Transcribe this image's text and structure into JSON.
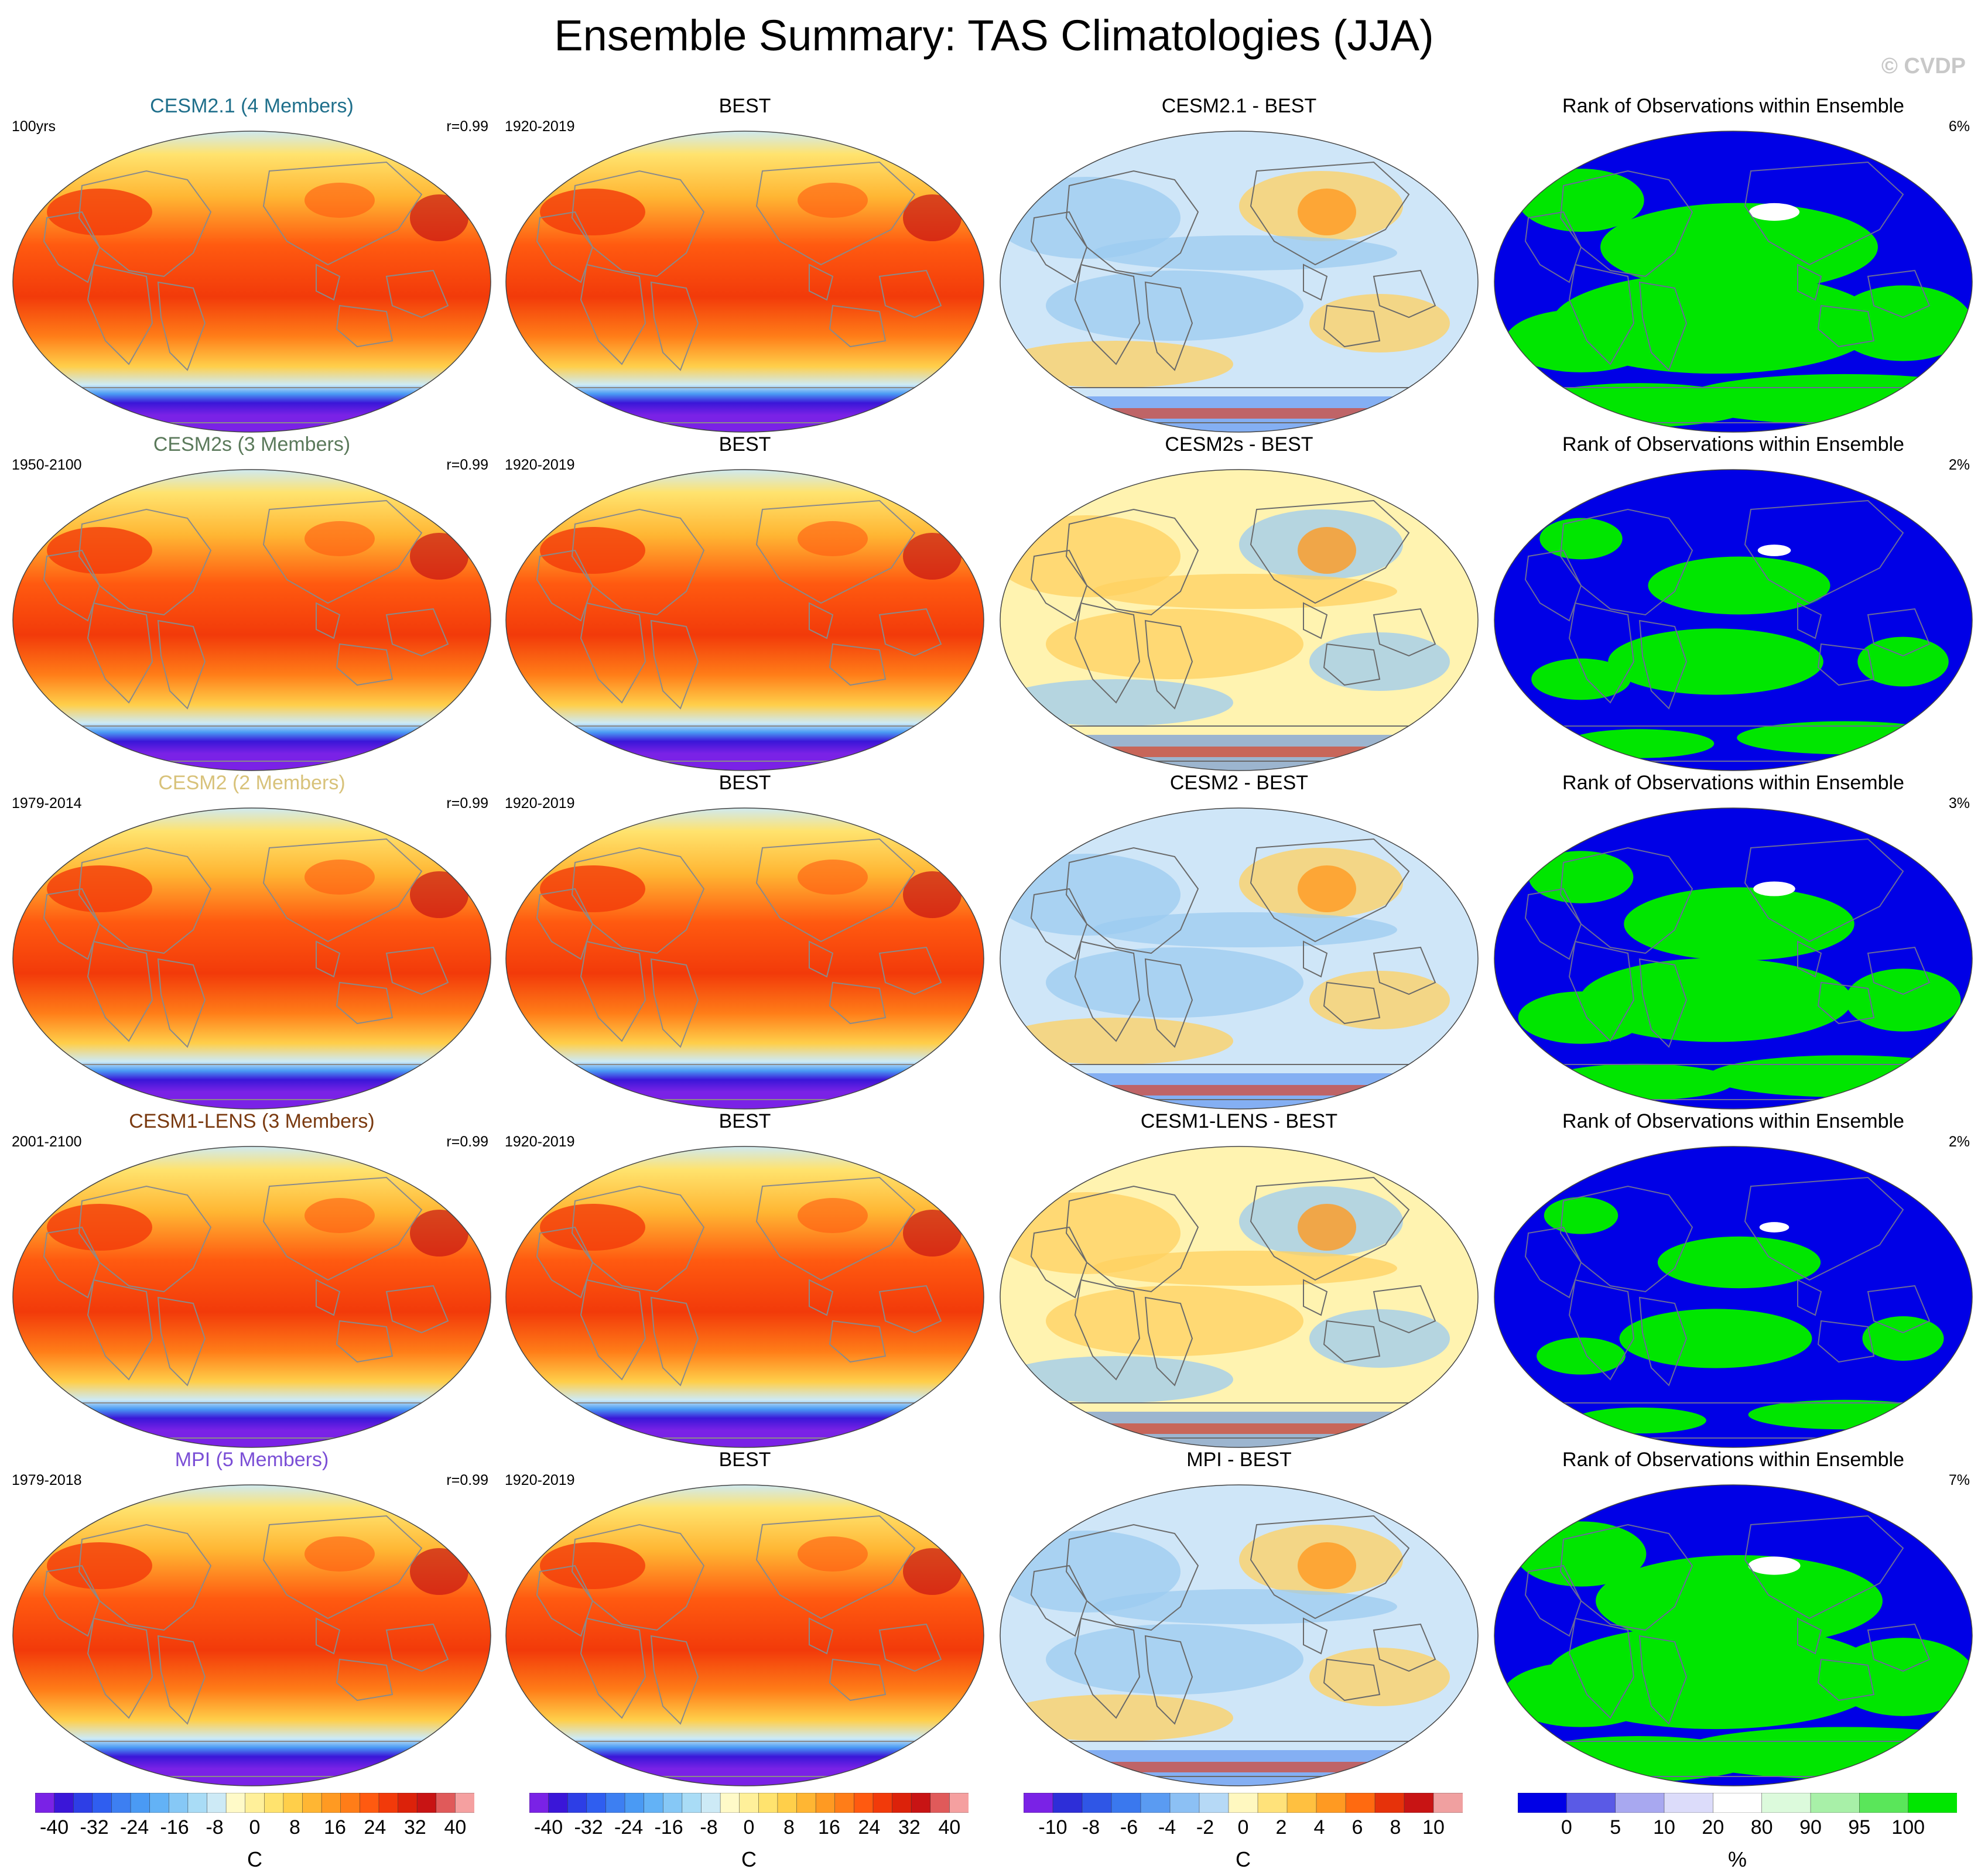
{
  "title": "Ensemble Summary: TAS Climatologies (JJA)",
  "copyright": "© CVDP",
  "rows": [
    {
      "model": "CESM2.1 (4 Members)",
      "model_color": "#1f6f8b",
      "period": "100yrs",
      "r": "r=0.99",
      "obs": "BEST",
      "obs_period": "1920-2019",
      "diff": "CESM2.1 - BEST",
      "rank": "Rank of Observations within Ensemble",
      "rank_pct": "6%",
      "green_frac": 0.58
    },
    {
      "model": "CESM2s (3 Members)",
      "model_color": "#5b7a5b",
      "period": "1950-2100",
      "r": "r=0.99",
      "obs": "BEST",
      "obs_period": "1920-2019",
      "diff": "CESM2s - BEST",
      "rank": "Rank of Observations within Ensemble",
      "rank_pct": "2%",
      "green_frac": 0.25
    },
    {
      "model": "CESM2 (2 Members)",
      "model_color": "#d8c27a",
      "period": "1979-2014",
      "r": "r=0.99",
      "obs": "BEST",
      "obs_period": "1920-2019",
      "diff": "CESM2 - BEST",
      "rank": "Rank of Observations within Ensemble",
      "rank_pct": "3%",
      "green_frac": 0.4
    },
    {
      "model": "CESM1-LENS (3 Members)",
      "model_color": "#7a3a10",
      "period": "2001-2100",
      "r": "r=0.99",
      "obs": "BEST",
      "obs_period": "1920-2019",
      "diff": "CESM1-LENS - BEST",
      "rank": "Rank of Observations within Ensemble",
      "rank_pct": "2%",
      "green_frac": 0.2
    },
    {
      "model": "MPI (5 Members)",
      "model_color": "#7b4fd6",
      "period": "1979-2018",
      "r": "r=0.99",
      "obs": "BEST",
      "obs_period": "1920-2019",
      "diff": "MPI - BEST",
      "rank": "Rank of Observations within Ensemble",
      "rank_pct": "7%",
      "green_frac": 0.62
    }
  ],
  "colorbars": [
    {
      "unit": "C",
      "ticks": [
        "-40",
        "-32",
        "-24",
        "-16",
        "-8",
        "0",
        "8",
        "16",
        "24",
        "32",
        "40"
      ],
      "colors": [
        "#7a22e6",
        "#3a16d8",
        "#2d3ee6",
        "#2f5ef0",
        "#3d7ff2",
        "#4a9af4",
        "#63b2f6",
        "#86c8f6",
        "#a9dcf6",
        "#cdeaf6",
        "#fffac8",
        "#fff09a",
        "#ffe36e",
        "#ffcf4a",
        "#ffb633",
        "#ff9a22",
        "#ff7d18",
        "#ff5a10",
        "#f23a0a",
        "#dc220a",
        "#c81414",
        "#e05a5a",
        "#f5a0a0"
      ]
    },
    {
      "unit": "C",
      "ticks": [
        "-40",
        "-32",
        "-24",
        "-16",
        "-8",
        "0",
        "8",
        "16",
        "24",
        "32",
        "40"
      ],
      "colors": [
        "#7a22e6",
        "#3a16d8",
        "#2d3ee6",
        "#2f5ef0",
        "#3d7ff2",
        "#4a9af4",
        "#63b2f6",
        "#86c8f6",
        "#a9dcf6",
        "#cdeaf6",
        "#fffac8",
        "#fff09a",
        "#ffe36e",
        "#ffcf4a",
        "#ffb633",
        "#ff9a22",
        "#ff7d18",
        "#ff5a10",
        "#f23a0a",
        "#dc220a",
        "#c81414",
        "#e05a5a",
        "#f5a0a0"
      ]
    },
    {
      "unit": "C",
      "ticks": [
        "-10",
        "-8",
        "-6",
        "-4",
        "-2",
        "0",
        "2",
        "4",
        "6",
        "8",
        "10"
      ],
      "colors": [
        "#7a22e6",
        "#2d2ed8",
        "#2f56e6",
        "#3a78ee",
        "#5a9bf2",
        "#8cc0f4",
        "#b6d9f6",
        "#fff8c0",
        "#ffe27a",
        "#ffc040",
        "#ff9a22",
        "#ff6a10",
        "#e6320a",
        "#c81414",
        "#f0a0a0"
      ]
    },
    {
      "unit": "%",
      "ticks": [
        "0",
        "5",
        "10",
        "20",
        "80",
        "90",
        "95",
        "100"
      ],
      "colors": [
        "#0000e6",
        "#5a5ae6",
        "#a8a8f0",
        "#dcdcfa",
        "#ffffff",
        "#dcfadc",
        "#a8f0a8",
        "#5ae65a",
        "#00e600"
      ]
    }
  ],
  "colors": {
    "temp_hot": "#f23a0a",
    "temp_warm": "#ff9a22",
    "temp_mild": "#ffe36e",
    "temp_cold": "#a9dcf6",
    "temp_ice": "#7a22e6",
    "diff_pos": "#ffd060",
    "diff_neg": "#9ccbf0",
    "rank_low": "#0000e6",
    "rank_high": "#00e600",
    "coast": "#8a8a8a"
  }
}
